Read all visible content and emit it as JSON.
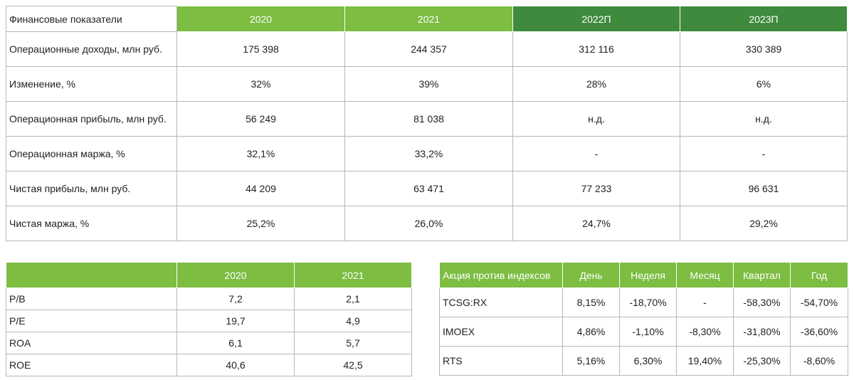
{
  "financials": {
    "header": {
      "label": "Финансовые показатели",
      "years": [
        "2020",
        "2021",
        "2022П",
        "2023П"
      ]
    },
    "rows": [
      {
        "label": "Операционные доходы, млн руб.",
        "values": [
          "175 398",
          "244 357",
          "312 116",
          "330 389"
        ]
      },
      {
        "label": "Изменение, %",
        "values": [
          "32%",
          "39%",
          "28%",
          "6%"
        ]
      },
      {
        "label": "Операционная прибыль, млн руб.",
        "values": [
          "56 249",
          "81 038",
          "н.д.",
          "н.д."
        ]
      },
      {
        "label": "Операционная маржа, %",
        "values": [
          "32,1%",
          "33,2%",
          "-",
          "-"
        ]
      },
      {
        "label": "Чистая прибыль, млн руб.",
        "values": [
          "44 209",
          "63 471",
          "77 233",
          "96 631"
        ]
      },
      {
        "label": "Чистая маржа, %",
        "values": [
          "25,2%",
          "26,0%",
          "24,7%",
          "29,2%"
        ]
      }
    ]
  },
  "ratios": {
    "header": {
      "label": "",
      "years": [
        "2020",
        "2021"
      ]
    },
    "rows": [
      {
        "label": "P/B",
        "values": [
          "7,2",
          "2,1"
        ]
      },
      {
        "label": "P/E",
        "values": [
          "19,7",
          "4,9"
        ]
      },
      {
        "label": "ROA",
        "values": [
          "6,1",
          "5,7"
        ]
      },
      {
        "label": "ROE",
        "values": [
          "40,6",
          "42,5"
        ]
      }
    ]
  },
  "indices": {
    "header": {
      "label": "Акция против индексов",
      "periods": [
        "День",
        "Неделя",
        "Месяц",
        "Квартал",
        "Год"
      ]
    },
    "rows": [
      {
        "label": "TCSG:RX",
        "values": [
          "8,15%",
          "-18,70%",
          "-",
          "-58,30%",
          "-54,70%"
        ]
      },
      {
        "label": "IMOEX",
        "values": [
          "4,86%",
          "-1,10%",
          "-8,30%",
          "-31,80%",
          "-36,60%"
        ]
      },
      {
        "label": "RTS",
        "values": [
          "5,16%",
          "6,30%",
          "19,40%",
          "-25,30%",
          "-8,60%"
        ]
      }
    ]
  },
  "colors": {
    "header_green": "#7cbd42",
    "forecast_green": "#3f8a3c"
  }
}
